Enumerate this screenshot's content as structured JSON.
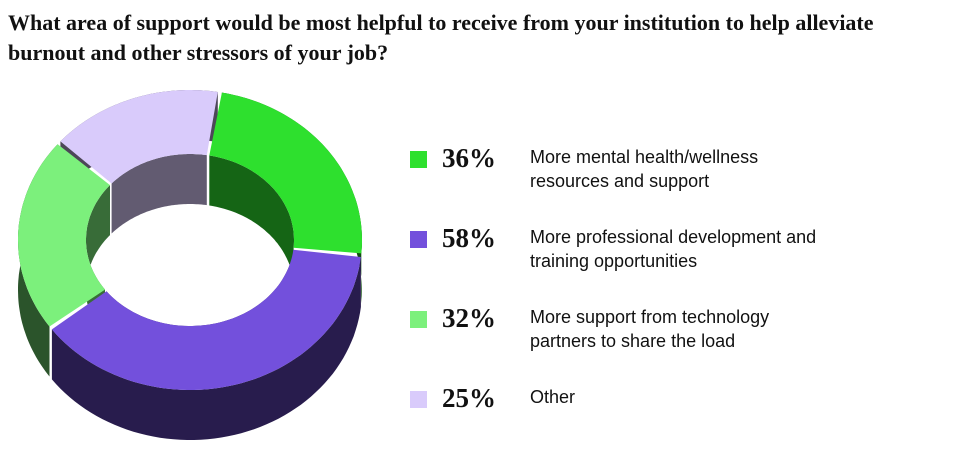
{
  "chart_data": {
    "type": "pie",
    "title": "What area of support would be most helpful to receive from your institution to help alleviate burnout and other stressors of your job?",
    "categories": [
      "More mental health/wellness resources and support",
      "More professional development and training opportunities",
      "More support from technology partners to share the load",
      "Other"
    ],
    "values": [
      36,
      58,
      32,
      25
    ],
    "value_labels": [
      "36%",
      "58%",
      "32%",
      "25%"
    ],
    "colors": [
      "#2ee02e",
      "#7350dc",
      "#7cf07c",
      "#d9cbfb"
    ]
  }
}
